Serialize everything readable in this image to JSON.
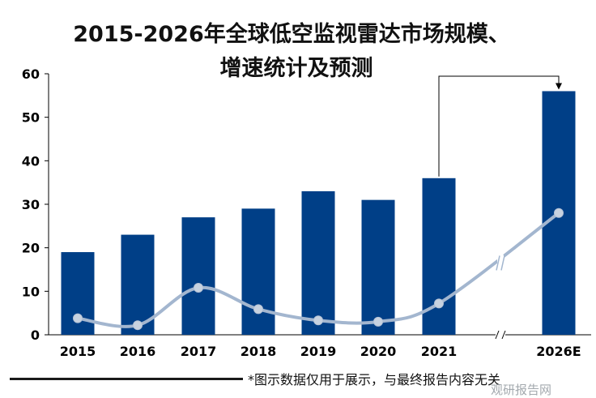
{
  "title": {
    "line1": "2015-2026年全球低空监视雷达市场规模、",
    "line2": "增速统计及预测"
  },
  "footnote": "*图示数据仅用于展示，与最终报告内容无关",
  "watermark": "观研报告网",
  "colors": {
    "bar": "#003f87",
    "line": "#a3b6cf",
    "marker": "#c7d2e0",
    "axis": "#000000",
    "grid": "#d9d9d9"
  },
  "chart_data": {
    "type": "bar",
    "categories": [
      "2015",
      "2016",
      "2017",
      "2018",
      "2019",
      "2020",
      "2021",
      "2026E"
    ],
    "values": [
      19,
      23,
      27,
      29,
      33,
      31,
      36,
      56
    ],
    "growth_line_values": [
      3.8,
      2.2,
      10.8,
      5.9,
      3.3,
      3.0,
      7.2,
      28.0
    ],
    "ylim": [
      0,
      60
    ],
    "yticks": [
      0,
      10,
      20,
      30,
      40,
      50,
      60
    ],
    "axis_break_between": [
      "2021",
      "2026E"
    ],
    "annotation": "arrow from 2021 bar to 2026E bar",
    "grid": false,
    "legend": "none"
  }
}
